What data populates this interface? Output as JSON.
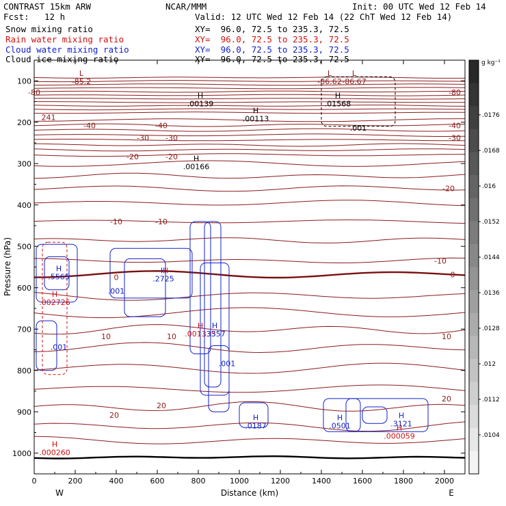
{
  "header": {
    "model": "CONTRAST 15km ARW",
    "org": "NCAR/MMM",
    "init": "Init: 00 UTC Wed 12 Feb 14",
    "fcst_label": "Fcst:",
    "fcst_value": "12 h",
    "valid": "Valid: 12 UTC Wed 12 Feb 14 (22 ChT Wed 12 Feb 14)"
  },
  "fields": [
    {
      "name": "Snow mixing ratio",
      "xy": "XY=  96.0, 72.5 to 235.3, 72.5",
      "color": "#000000"
    },
    {
      "name": "Rain water mixing ratio",
      "xy": "XY=  96.0, 72.5 to 235.3, 72.5",
      "color": "#d01010"
    },
    {
      "name": "Cloud water mixing ratio",
      "xy": "XY=  96.0, 72.5 to 235.3, 72.5",
      "color": "#1020c8"
    },
    {
      "name": "Cloud ice mixing ratio",
      "xy": "XY=  96.0, 72.5 to 235.3, 72.5",
      "color": "#000000"
    }
  ],
  "chart_data": {
    "type": "contour",
    "xlabel": "Distance (km)",
    "ylabel": "Pressure (hPa)",
    "xlim": [
      0,
      2100
    ],
    "ylim": [
      1050,
      50
    ],
    "x_ticks": [
      0,
      200,
      400,
      600,
      800,
      1000,
      1200,
      1400,
      1600,
      1800,
      2000
    ],
    "y_ticks": [
      100,
      200,
      300,
      400,
      500,
      600,
      700,
      800,
      900,
      1000
    ],
    "x_end_labels": {
      "left": "W",
      "right": "E"
    },
    "colorbar": {
      "unit": "g kg⁻¹",
      "labels": [
        ".0176",
        ".0168",
        ".016",
        ".0152",
        ".0144",
        ".0136",
        ".0128",
        ".012",
        ".0112",
        ".0104"
      ]
    },
    "temperature_labels": [
      {
        "x": 0,
        "p": 128,
        "text": "-80"
      },
      {
        "x": 2050,
        "p": 128,
        "text": "-80"
      },
      {
        "x": 270,
        "p": 208,
        "text": "-40"
      },
      {
        "x": 620,
        "p": 208,
        "text": "-40"
      },
      {
        "x": 2050,
        "p": 208,
        "text": "-40"
      },
      {
        "x": 530,
        "p": 238,
        "text": "-30"
      },
      {
        "x": 670,
        "p": 238,
        "text": "-30"
      },
      {
        "x": 2050,
        "p": 238,
        "text": "-30"
      },
      {
        "x": 480,
        "p": 283,
        "text": "-20"
      },
      {
        "x": 670,
        "p": 283,
        "text": "-20"
      },
      {
        "x": 2020,
        "p": 360,
        "text": "-20"
      },
      {
        "x": 400,
        "p": 440,
        "text": "-10"
      },
      {
        "x": 620,
        "p": 440,
        "text": "-10"
      },
      {
        "x": 1980,
        "p": 535,
        "text": "-10"
      },
      {
        "x": 400,
        "p": 575,
        "text": "0"
      },
      {
        "x": 2040,
        "p": 568,
        "text": "0"
      },
      {
        "x": 350,
        "p": 718,
        "text": "10"
      },
      {
        "x": 670,
        "p": 718,
        "text": "10"
      },
      {
        "x": 2010,
        "p": 718,
        "text": "10"
      },
      {
        "x": 390,
        "p": 908,
        "text": "20"
      },
      {
        "x": 620,
        "p": 885,
        "text": "20"
      },
      {
        "x": 2010,
        "p": 868,
        "text": "20"
      },
      {
        "x": 70,
        "p": 188,
        "text": "241"
      }
    ],
    "extrema": [
      {
        "x": 230,
        "p": 88,
        "mark": "L",
        "value": "-85.2",
        "color": "#8b1a1a"
      },
      {
        "x": 1440,
        "p": 88,
        "mark": "L",
        "value": "-86.62",
        "color": "#8b1a1a"
      },
      {
        "x": 1560,
        "p": 88,
        "mark": "L",
        "value": "-86.67",
        "color": "#8b1a1a"
      },
      {
        "x": 810,
        "p": 142,
        "mark": "H",
        "value": ".00139",
        "color": "#000000"
      },
      {
        "x": 1080,
        "p": 178,
        "mark": "H",
        "value": ".00113",
        "color": "#000000"
      },
      {
        "x": 1480,
        "p": 142,
        "mark": "H",
        "value": ".01568",
        "color": "#000000"
      },
      {
        "x": 1580,
        "p": 200,
        "mark": "",
        "value": ".001",
        "color": "#000000"
      },
      {
        "x": 790,
        "p": 294,
        "mark": "H",
        "value": ".00166",
        "color": "#000000"
      },
      {
        "x": 120,
        "p": 560,
        "mark": "H",
        "value": ".5565",
        "color": "#1020c8"
      },
      {
        "x": 100,
        "p": 622,
        "mark": "H",
        "value": ".002726",
        "color": "#d01010"
      },
      {
        "x": 630,
        "p": 565,
        "mark": "H",
        "value": ".2725",
        "color": "#1020c8"
      },
      {
        "x": 640,
        "p": 565,
        "mark": "H",
        "value": "",
        "color": "#d01010"
      },
      {
        "x": 400,
        "p": 595,
        "mark": "",
        "value": ".001",
        "color": "#1020c8"
      },
      {
        "x": 810,
        "p": 698,
        "mark": "H",
        "value": ".001335",
        "color": "#d01010"
      },
      {
        "x": 880,
        "p": 698,
        "mark": "H",
        "value": ".3357",
        "color": "#1020c8"
      },
      {
        "x": 120,
        "p": 730,
        "mark": "",
        "value": ".001",
        "color": "#1020c8"
      },
      {
        "x": 940,
        "p": 770,
        "mark": "",
        "value": ".001",
        "color": "#1020c8"
      },
      {
        "x": 1080,
        "p": 920,
        "mark": "H",
        "value": ".0187",
        "color": "#1020c8"
      },
      {
        "x": 1490,
        "p": 920,
        "mark": "H",
        "value": ".0501",
        "color": "#1020c8"
      },
      {
        "x": 1790,
        "p": 915,
        "mark": "H",
        "value": ".3121",
        "color": "#1020c8"
      },
      {
        "x": 1780,
        "p": 945,
        "mark": "H",
        "value": ".000059",
        "color": "#d01010"
      },
      {
        "x": 100,
        "p": 985,
        "mark": "H",
        "value": ".000260",
        "color": "#d01010"
      }
    ]
  }
}
